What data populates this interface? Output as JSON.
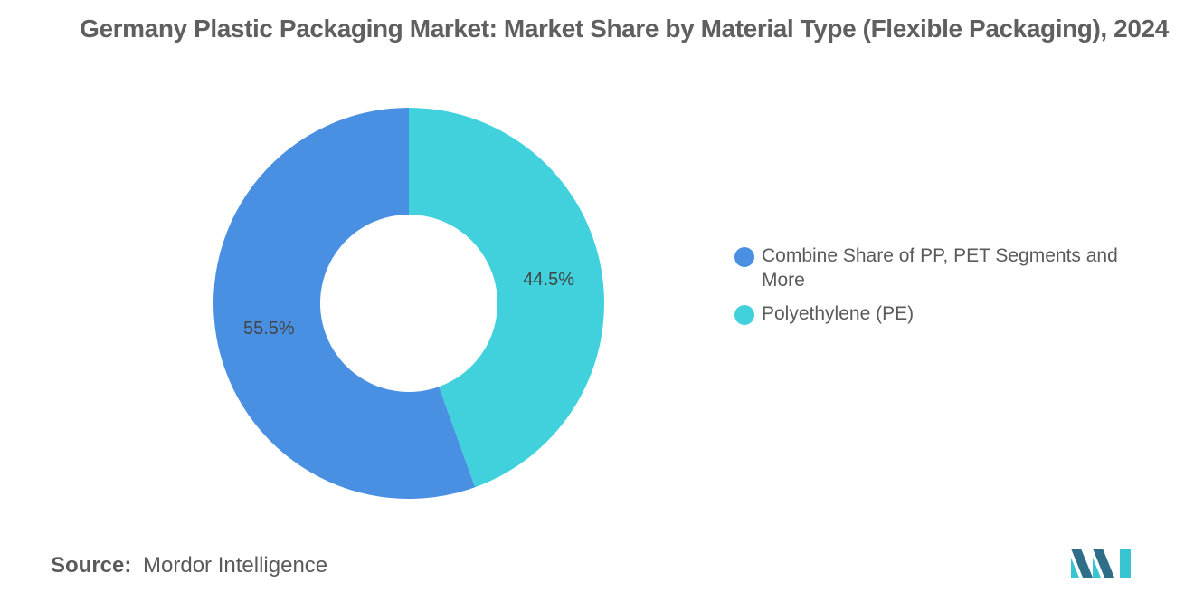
{
  "colors": {
    "series_1": "#4a90e2",
    "series_2": "#40d1dc",
    "title_text": "#5f5f5f",
    "label_text": "#444444",
    "logo_dark": "#2e6e88",
    "logo_light": "#38c4d1"
  },
  "chart_data": {
    "type": "pie",
    "variant": "donut",
    "title": "Germany Plastic Packaging Market: Market Share by Material Type (Flexible Packaging), 2024",
    "series": [
      {
        "name": "Polyethylene (PE)",
        "value": 44.5,
        "label": "44.5%"
      },
      {
        "name": "Combine Share of PP, PET Segments and More",
        "value": 55.5,
        "label": "55.5%"
      }
    ],
    "legend": {
      "position": "right",
      "entries": [
        "Combine Share of PP, PET Segments and More",
        "Polyethylene (PE)"
      ]
    }
  },
  "source": {
    "label": "Source:",
    "text": "Mordor Intelligence"
  },
  "logo": {
    "icon": "mordor-intelligence-logo"
  }
}
